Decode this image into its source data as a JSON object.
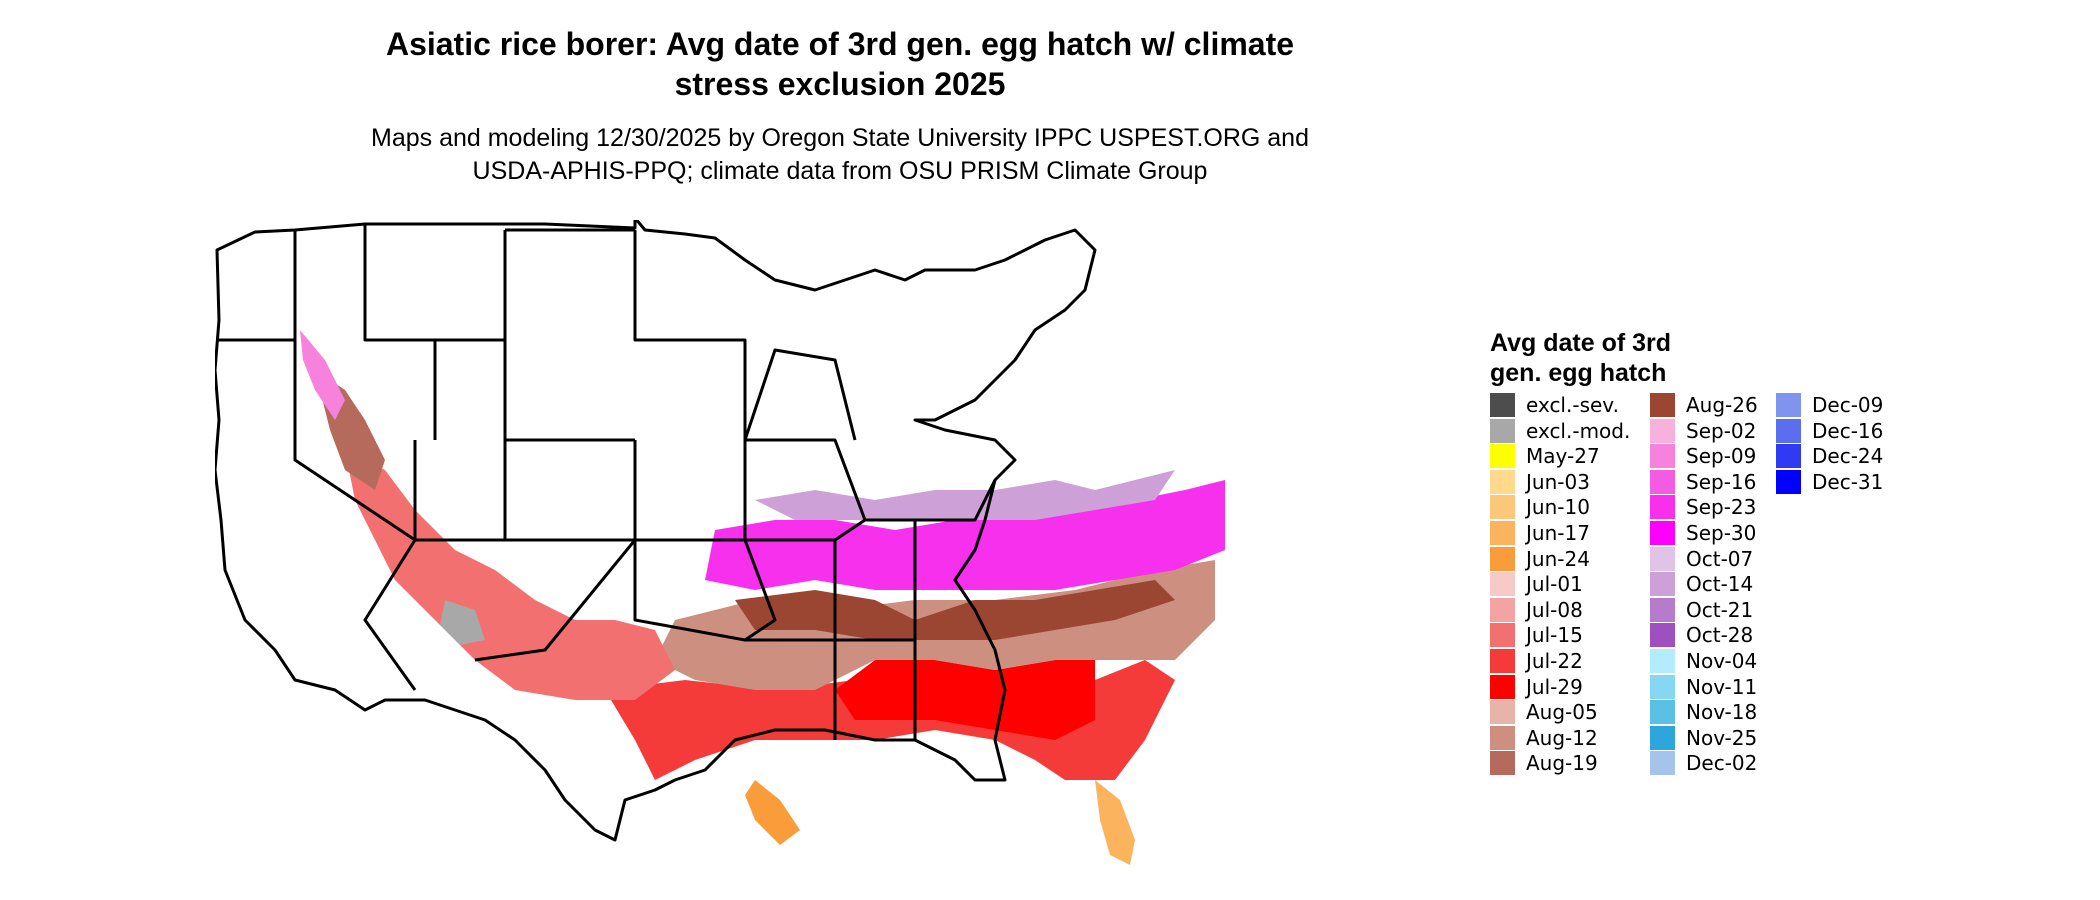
{
  "title_line1": "Asiatic rice borer: Avg date of 3rd gen. egg hatch w/ climate",
  "title_line2": "stress exclusion 2025",
  "subtitle_line1": "Maps and modeling 12/30/2025 by Oregon State University IPPC USPEST.ORG and",
  "subtitle_line2": "USDA-APHIS-PPQ; climate data from OSU PRISM Climate Group",
  "legend": {
    "title_line1": "Avg date of 3rd",
    "title_line2": "gen. egg hatch",
    "columns": [
      [
        {
          "label": "excl.-sev.",
          "color": "#4d4d4d"
        },
        {
          "label": "excl.-mod.",
          "color": "#a8a8a8"
        },
        {
          "label": "May-27",
          "color": "#ffff00"
        },
        {
          "label": "Jun-03",
          "color": "#ffd98c"
        },
        {
          "label": "Jun-10",
          "color": "#fdc77a"
        },
        {
          "label": "Jun-17",
          "color": "#fbb45d"
        },
        {
          "label": "Jun-24",
          "color": "#fb9c3b"
        },
        {
          "label": "Jul-01",
          "color": "#f7c9c9"
        },
        {
          "label": "Jul-08",
          "color": "#f4a3a3"
        },
        {
          "label": "Jul-15",
          "color": "#f27070"
        },
        {
          "label": "Jul-22",
          "color": "#f53a3a"
        },
        {
          "label": "Jul-29",
          "color": "#ff0000"
        },
        {
          "label": "Aug-05",
          "color": "#e8b4aa"
        },
        {
          "label": "Aug-12",
          "color": "#cc8f80"
        },
        {
          "label": "Aug-19",
          "color": "#b56a5c"
        }
      ],
      [
        {
          "label": "Aug-26",
          "color": "#9a4632"
        },
        {
          "label": "Sep-02",
          "color": "#f8b0dc"
        },
        {
          "label": "Sep-09",
          "color": "#f782de"
        },
        {
          "label": "Sep-16",
          "color": "#f35be2"
        },
        {
          "label": "Sep-23",
          "color": "#f630ec"
        },
        {
          "label": "Sep-30",
          "color": "#ff00ff"
        },
        {
          "label": "Oct-07",
          "color": "#e2c3e8"
        },
        {
          "label": "Oct-14",
          "color": "#cda0d8"
        },
        {
          "label": "Oct-21",
          "color": "#b67ccb"
        },
        {
          "label": "Oct-28",
          "color": "#9f50c0"
        },
        {
          "label": "Nov-04",
          "color": "#b3ecfd"
        },
        {
          "label": "Nov-11",
          "color": "#86d7f2"
        },
        {
          "label": "Nov-18",
          "color": "#5bbfe6"
        },
        {
          "label": "Nov-25",
          "color": "#2ea6dc"
        },
        {
          "label": "Dec-02",
          "color": "#a4c4ec"
        }
      ],
      [
        {
          "label": "Dec-09",
          "color": "#7f94ee"
        },
        {
          "label": "Dec-16",
          "color": "#5c6ef0"
        },
        {
          "label": "Dec-24",
          "color": "#2f3af2"
        },
        {
          "label": "Dec-31",
          "color": "#0000ff"
        }
      ]
    ]
  }
}
